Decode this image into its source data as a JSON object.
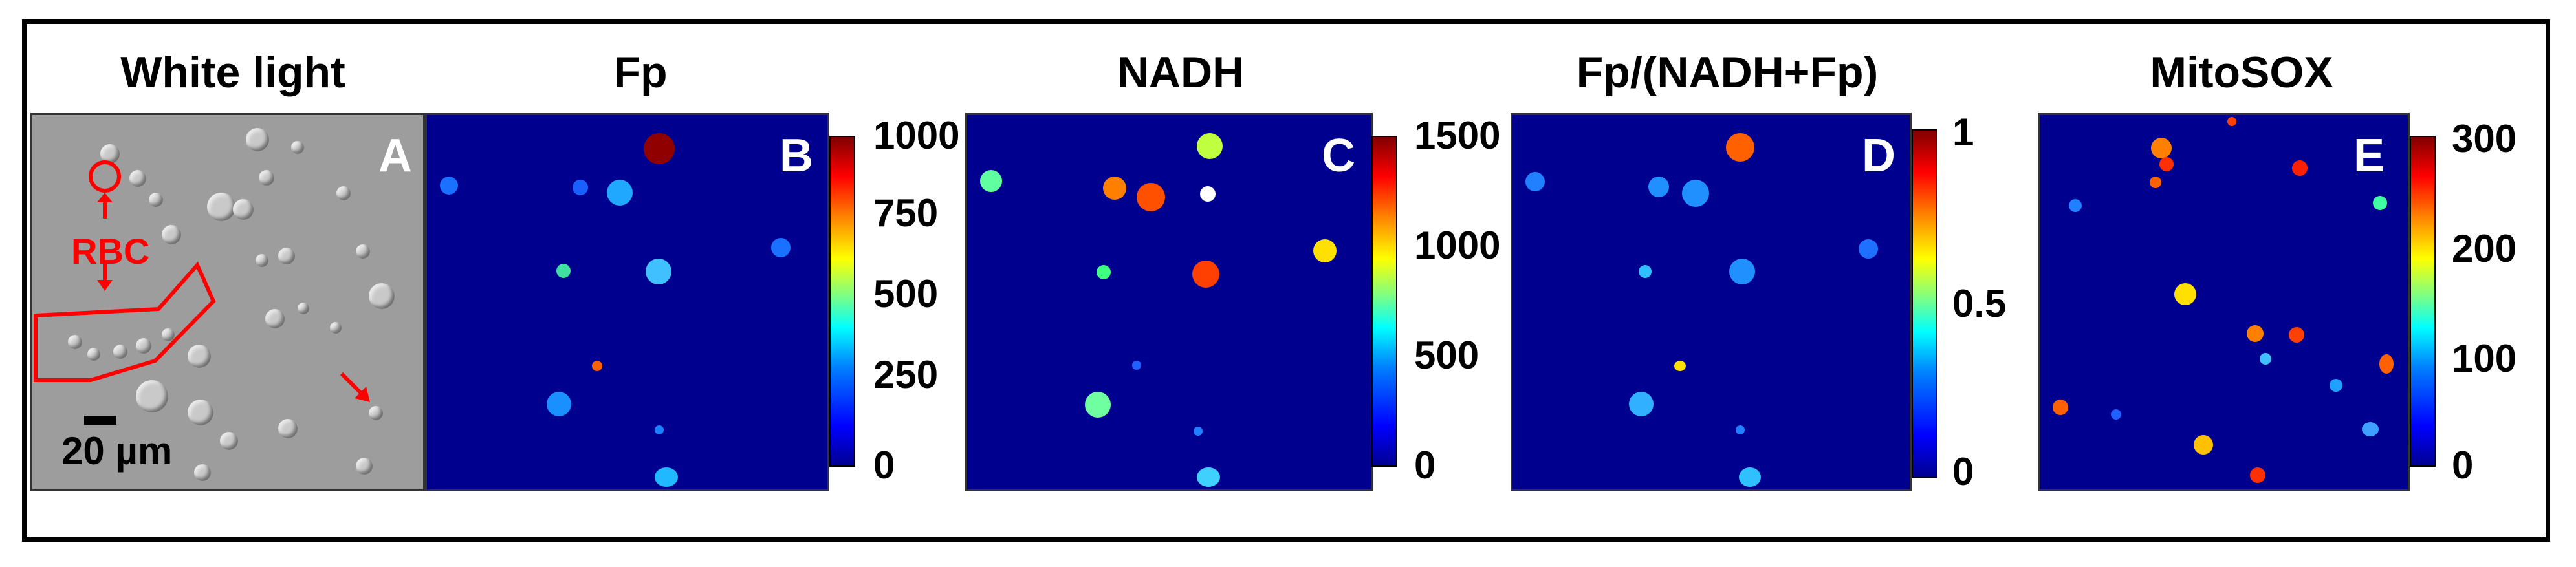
{
  "panels": [
    {
      "title": "White light",
      "letter": "A",
      "type": "brightfield"
    },
    {
      "title": "Fp",
      "letter": "B",
      "type": "heatmap",
      "colorbar_ticks": [
        "1000",
        "750",
        "500",
        "250",
        "0"
      ]
    },
    {
      "title": "NADH",
      "letter": "C",
      "type": "heatmap",
      "colorbar_ticks": [
        "1500",
        "1000",
        "500",
        "0"
      ]
    },
    {
      "title": "Fp/(NADH+Fp)",
      "letter": "D",
      "type": "heatmap",
      "colorbar_ticks": [
        "1",
        "0.5",
        "0"
      ]
    },
    {
      "title": "MitoSOX",
      "letter": "E",
      "type": "heatmap",
      "colorbar_ticks": [
        "300",
        "200",
        "100",
        "0"
      ]
    }
  ],
  "annotations": {
    "rbc_label": "RBC",
    "scale_label": "20 µm"
  },
  "colors": {
    "annotation": "#ff0000",
    "heatmap_background": "#00008f",
    "brightfield_background": "#9d9d9d"
  },
  "colormap": "jet"
}
